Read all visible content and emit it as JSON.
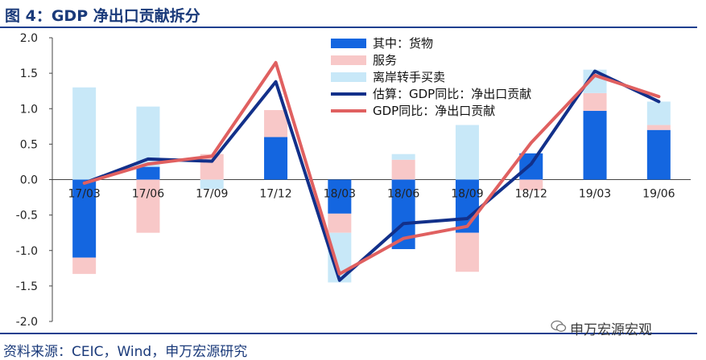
{
  "header": {
    "title": "图 4：GDP 净出口贡献拆分"
  },
  "footer": {
    "source": "资料来源：CEIC，Wind，申万宏源研究",
    "watermark": "申万宏源宏观"
  },
  "colors": {
    "goods": "#1466e0",
    "services": "#f8c8c8",
    "offshore": "#c8e8f8",
    "estimate": "#12308a",
    "gdp_yoy": "#e06060",
    "title": "#1a3a7a",
    "rule": "#1f3f8f"
  },
  "chart_data": {
    "type": "bar",
    "stacked": true,
    "title": "",
    "xlabel": "",
    "ylabel": "",
    "ylim": [
      -2.0,
      2.0
    ],
    "yticks": [
      "2.0",
      "1.5",
      "1.0",
      "0.5",
      "0.0",
      "-0.5",
      "-1.0",
      "-1.5",
      "-2.0"
    ],
    "grid": false,
    "legend_position": "top-right",
    "categories": [
      "17/03",
      "17/06",
      "17/09",
      "17/12",
      "18/03",
      "18/06",
      "18/09",
      "18/12",
      "19/03",
      "19/06"
    ],
    "series": [
      {
        "name": "其中：货物",
        "kind": "bar",
        "color_key": "goods",
        "values": [
          -1.1,
          0.18,
          0.0,
          0.6,
          -0.48,
          -0.98,
          -0.75,
          0.37,
          0.97,
          0.7
        ]
      },
      {
        "name": "服务",
        "kind": "bar",
        "color_key": "services",
        "values": [
          -0.23,
          -0.75,
          0.36,
          0.38,
          -0.27,
          0.28,
          -0.55,
          -0.15,
          0.25,
          0.07
        ]
      },
      {
        "name": "离岸转手买卖",
        "kind": "bar",
        "color_key": "offshore",
        "values": [
          1.3,
          0.85,
          -0.13,
          0.0,
          -0.7,
          0.08,
          0.77,
          0.0,
          0.33,
          0.33
        ]
      },
      {
        "name": "估算：GDP同比：净出口贡献",
        "kind": "line",
        "color_key": "estimate",
        "values": [
          -0.05,
          0.29,
          0.26,
          1.38,
          -1.42,
          -0.62,
          -0.55,
          0.22,
          1.53,
          1.1
        ]
      },
      {
        "name": "GDP同比：净出口贡献",
        "kind": "line",
        "color_key": "gdp_yoy",
        "values": [
          -0.05,
          0.22,
          0.33,
          1.65,
          -1.33,
          -0.83,
          -0.66,
          0.52,
          1.47,
          1.17
        ]
      }
    ]
  }
}
